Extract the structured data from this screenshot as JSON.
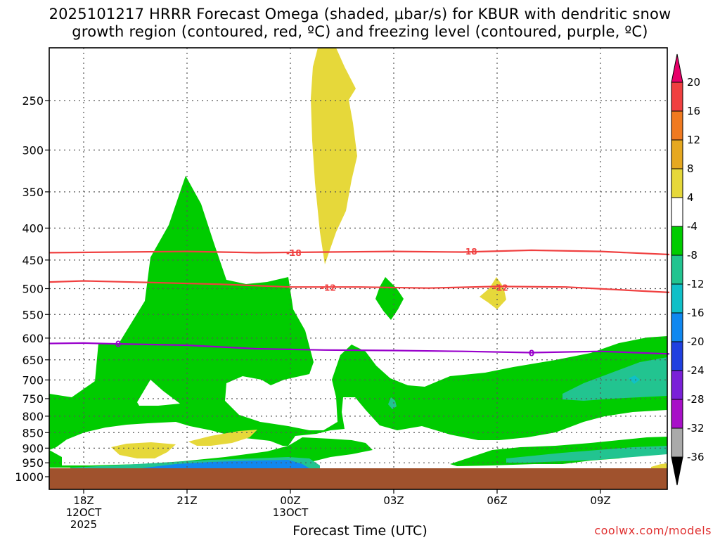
{
  "title_lines": [
    "2025101217 HRRR Forecast Omega (shaded, μbar/s) for KBUR with dendritic snow",
    "growth region (contoured, red, ºC) and freezing level (contoured, purple, ºC)"
  ],
  "credit": "coolwx.com/models",
  "colors": {
    "green": "#00cc00",
    "yellow": "#e6d83a",
    "teal": "#22c490",
    "ground": "#a0522d",
    "red_contour": "#f04040",
    "purple_contour": "#9900cc"
  },
  "chart_data": {
    "type": "heatmap",
    "title": "2025101217 HRRR Forecast Omega (shaded, μbar/s) for KBUR with dendritic snow growth region (contoured, red, ºC) and freezing level (contoured, purple, ºC)",
    "xlabel": "Forecast Time (UTC)",
    "ylabel": "",
    "y_scale": "log-pressure",
    "y_ticks": [
      250,
      300,
      350,
      400,
      450,
      500,
      550,
      600,
      650,
      700,
      750,
      800,
      850,
      900,
      950,
      1000
    ],
    "y_tick_labels": [
      "250",
      "300",
      "350",
      "400",
      "450",
      "500",
      "550",
      "600",
      "650",
      "700",
      "750",
      "800",
      "850",
      "900",
      "950",
      "1000"
    ],
    "x_ticks": [
      {
        "hour": 1,
        "label": "18Z",
        "sub": [
          "12OCT",
          "2025"
        ]
      },
      {
        "hour": 4,
        "label": "21Z",
        "sub": []
      },
      {
        "hour": 7,
        "label": "00Z",
        "sub": [
          "13OCT"
        ]
      },
      {
        "hour": 10,
        "label": "03Z",
        "sub": []
      },
      {
        "hour": 13,
        "label": "06Z",
        "sub": []
      },
      {
        "hour": 16,
        "label": "09Z",
        "sub": []
      }
    ],
    "colorbar": {
      "unit": "μbar/s",
      "labels": [
        "20",
        "16",
        "12",
        "8",
        "4",
        "-4",
        "-8",
        "-12",
        "-16",
        "-20",
        "-24",
        "-28",
        "-32",
        "-36"
      ],
      "colors": [
        "#e8006a",
        "#f04040",
        "#f07a20",
        "#e6a820",
        "#e6d83a",
        "#ffffff",
        "#00cc00",
        "#22c490",
        "#10c0c8",
        "#1088f0",
        "#2040e0",
        "#7a20d8",
        "#a810c8",
        "#aaaaaa",
        "#000000"
      ]
    },
    "contours": [
      {
        "name": "-18",
        "color": "red",
        "points": [
          [
            0,
            438
          ],
          [
            2,
            437
          ],
          [
            4,
            436
          ],
          [
            6,
            438
          ],
          [
            8,
            437
          ],
          [
            10,
            436
          ],
          [
            12,
            437
          ],
          [
            14,
            434
          ],
          [
            16,
            436
          ],
          [
            18,
            441
          ]
        ],
        "label_at": [
          [
            7.1,
            438
          ],
          [
            12.2,
            436
          ]
        ]
      },
      {
        "name": "-12",
        "color": "red",
        "points": [
          [
            0,
            488
          ],
          [
            1,
            486
          ],
          [
            3,
            489
          ],
          [
            5,
            492
          ],
          [
            7,
            497
          ],
          [
            9,
            497
          ],
          [
            11,
            499
          ],
          [
            13,
            496
          ],
          [
            15,
            497
          ],
          [
            18,
            507
          ]
        ],
        "label_at": [
          [
            8.1,
            498
          ],
          [
            13.1,
            498
          ]
        ]
      },
      {
        "name": "0",
        "color": "purple",
        "points": [
          [
            0,
            612
          ],
          [
            1,
            611
          ],
          [
            2,
            613
          ],
          [
            4,
            616
          ],
          [
            6,
            624
          ],
          [
            8,
            627
          ],
          [
            10,
            628
          ],
          [
            12,
            630
          ],
          [
            14,
            633
          ],
          [
            16,
            630
          ],
          [
            18,
            636
          ]
        ],
        "label_at": [
          [
            2,
            613
          ],
          [
            14,
            634
          ]
        ]
      }
    ],
    "ground_level_hPa": 975
  }
}
